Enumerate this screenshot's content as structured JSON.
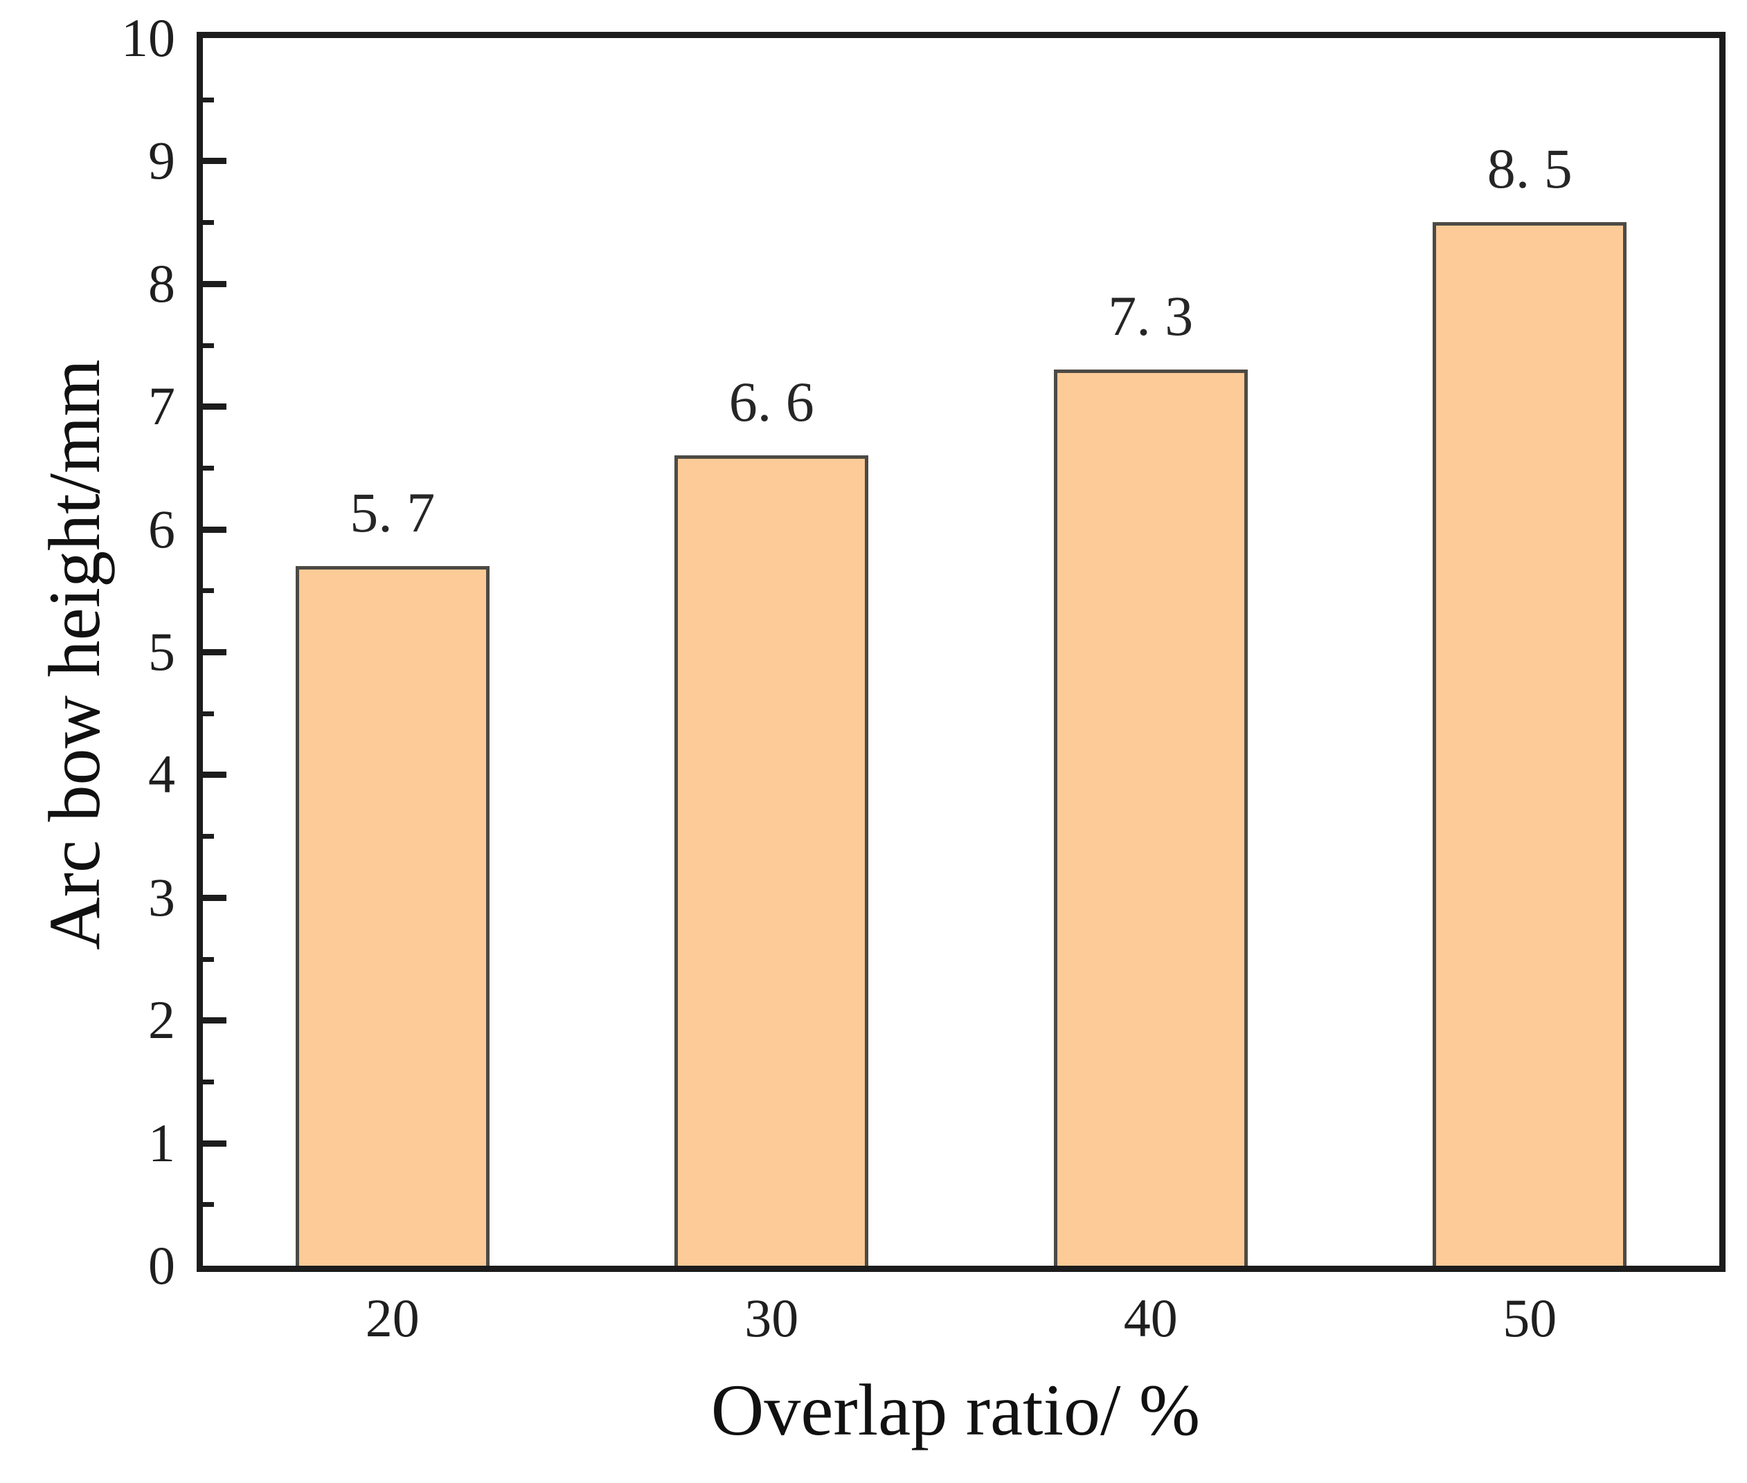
{
  "chart_data": {
    "type": "bar",
    "title": "",
    "xlabel": "Overlap ratio/ %",
    "ylabel": "Arc bow height/mm",
    "categories": [
      "20",
      "30",
      "40",
      "50"
    ],
    "values": [
      5.7,
      6.6,
      7.3,
      8.5
    ],
    "bar_value_labels": [
      "5. 7",
      "6. 6",
      "7. 3",
      "8. 5"
    ],
    "ylim": [
      0,
      10
    ],
    "y_major_tick_step": 1,
    "y_minor_tick_step": 0.5,
    "y_tick_labels": [
      "0",
      "1",
      "2",
      "3",
      "4",
      "5",
      "6",
      "7",
      "8",
      "9",
      "10"
    ],
    "grid": false,
    "legend": "none",
    "frame": "full-box",
    "tick_direction": "in",
    "colors": {
      "bar_fill": "#fccb97",
      "bar_border": "#4d4a45",
      "axis_frame": "#1c1c1c",
      "text": "#1f1f1f",
      "background": "#ffffff"
    }
  }
}
